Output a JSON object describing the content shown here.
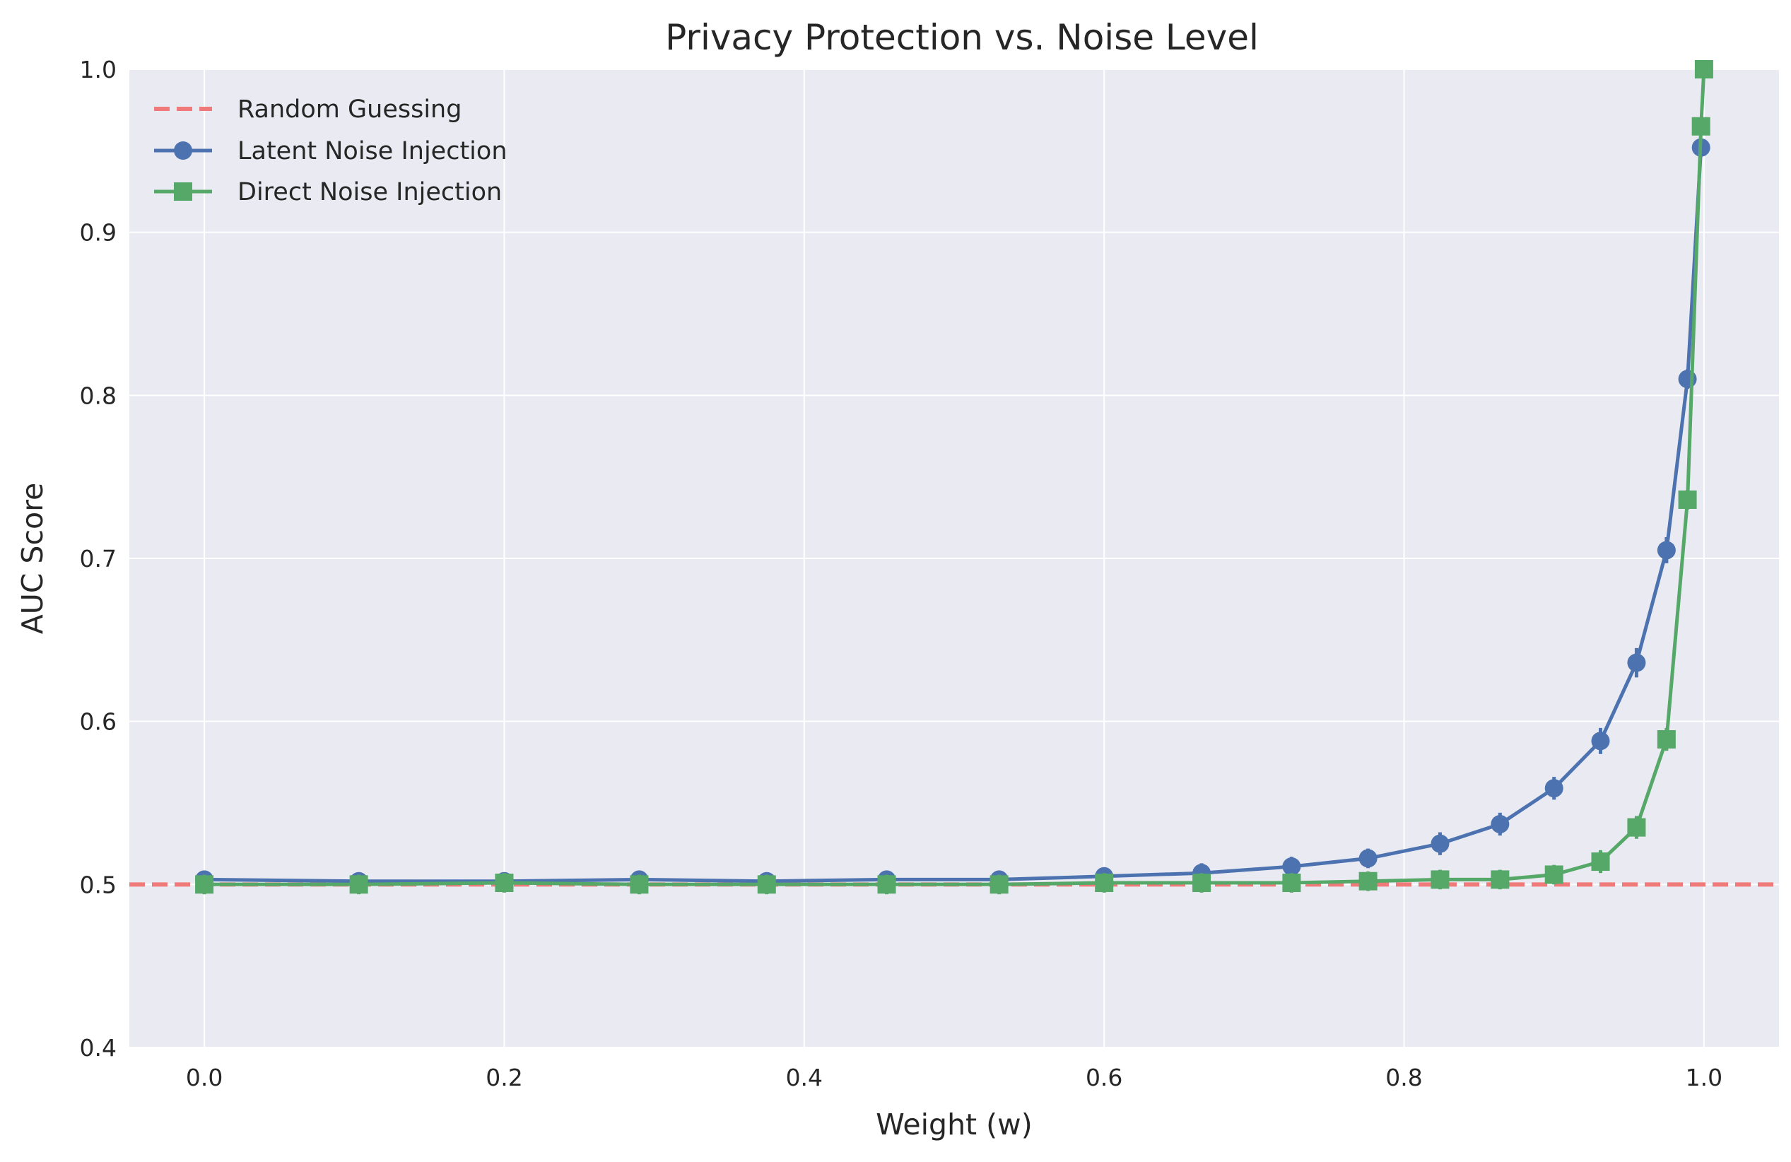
{
  "chart_data": {
    "type": "line",
    "title": "Privacy Protection vs. Noise Level",
    "xlabel": "Weight (w)",
    "ylabel": "AUC Score",
    "xlim": [
      -0.05,
      1.05
    ],
    "ylim": [
      0.4,
      1.0
    ],
    "xticks": [
      0.0,
      0.2,
      0.4,
      0.6,
      0.8,
      1.0
    ],
    "xtick_labels": [
      "0.0",
      "0.2",
      "0.4",
      "0.6",
      "0.8",
      "1.0"
    ],
    "yticks": [
      0.4,
      0.5,
      0.6,
      0.7,
      0.8,
      0.9,
      1.0
    ],
    "ytick_labels": [
      "0.4",
      "0.5",
      "0.6",
      "0.7",
      "0.8",
      "0.9",
      "1.0"
    ],
    "grid": true,
    "legend_position": "top-left",
    "reference_line": {
      "name": "Random Guessing",
      "y": 0.5,
      "color": "#f07a7a",
      "style": "dashed"
    },
    "series": [
      {
        "name": "Latent Noise Injection",
        "color": "#4c72b0",
        "marker": "circle",
        "x": [
          0.0,
          0.103,
          0.2,
          0.29,
          0.375,
          0.455,
          0.53,
          0.6,
          0.665,
          0.725,
          0.776,
          0.824,
          0.864,
          0.9,
          0.931,
          0.955,
          0.975,
          0.989,
          0.998
        ],
        "y": [
          0.503,
          0.502,
          0.502,
          0.503,
          0.502,
          0.503,
          0.503,
          0.505,
          0.507,
          0.511,
          0.516,
          0.525,
          0.537,
          0.559,
          0.588,
          0.636,
          0.705,
          0.81,
          0.952
        ],
        "yerr": [
          0.005,
          0.005,
          0.005,
          0.005,
          0.005,
          0.005,
          0.005,
          0.005,
          0.006,
          0.006,
          0.006,
          0.007,
          0.007,
          0.007,
          0.008,
          0.009,
          0.008,
          0.006,
          0.004
        ]
      },
      {
        "name": "Direct Noise Injection",
        "color": "#55a868",
        "marker": "square",
        "x": [
          0.0,
          0.103,
          0.2,
          0.29,
          0.375,
          0.455,
          0.53,
          0.6,
          0.665,
          0.725,
          0.776,
          0.824,
          0.864,
          0.9,
          0.931,
          0.955,
          0.975,
          0.989,
          0.998,
          1.0
        ],
        "y": [
          0.5,
          0.5,
          0.501,
          0.5,
          0.5,
          0.5,
          0.5,
          0.501,
          0.501,
          0.501,
          0.502,
          0.503,
          0.503,
          0.506,
          0.514,
          0.535,
          0.589,
          0.736,
          0.965,
          1.0
        ],
        "yerr": [
          0.006,
          0.006,
          0.006,
          0.006,
          0.006,
          0.006,
          0.006,
          0.006,
          0.006,
          0.006,
          0.006,
          0.006,
          0.006,
          0.006,
          0.007,
          0.007,
          0.007,
          0.006,
          0.005,
          0.004
        ]
      }
    ]
  }
}
